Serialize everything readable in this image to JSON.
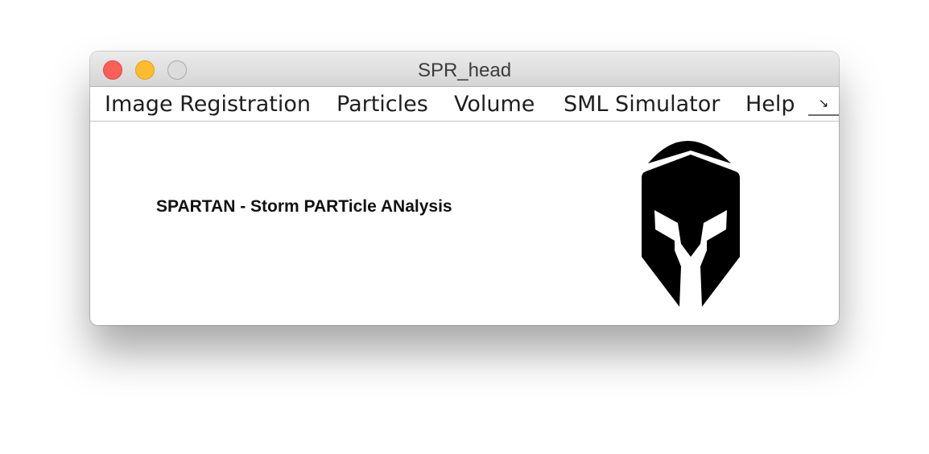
{
  "window": {
    "title": "SPR_head"
  },
  "menubar": {
    "items": [
      {
        "label": "Image Registration"
      },
      {
        "label": "Particles"
      },
      {
        "label": "Volume"
      },
      {
        "label": "SML Simulator"
      },
      {
        "label": "Help"
      }
    ],
    "overflow_glyph": "↘"
  },
  "content": {
    "app_label": "SPARTAN - Storm PARTicle ANalysis",
    "logo_icon": "spartan-helmet-icon"
  },
  "colors": {
    "close": "#fc5f57",
    "minimize": "#fdbc2e",
    "zoom": "#dcdcdc",
    "logo": "#000000"
  }
}
